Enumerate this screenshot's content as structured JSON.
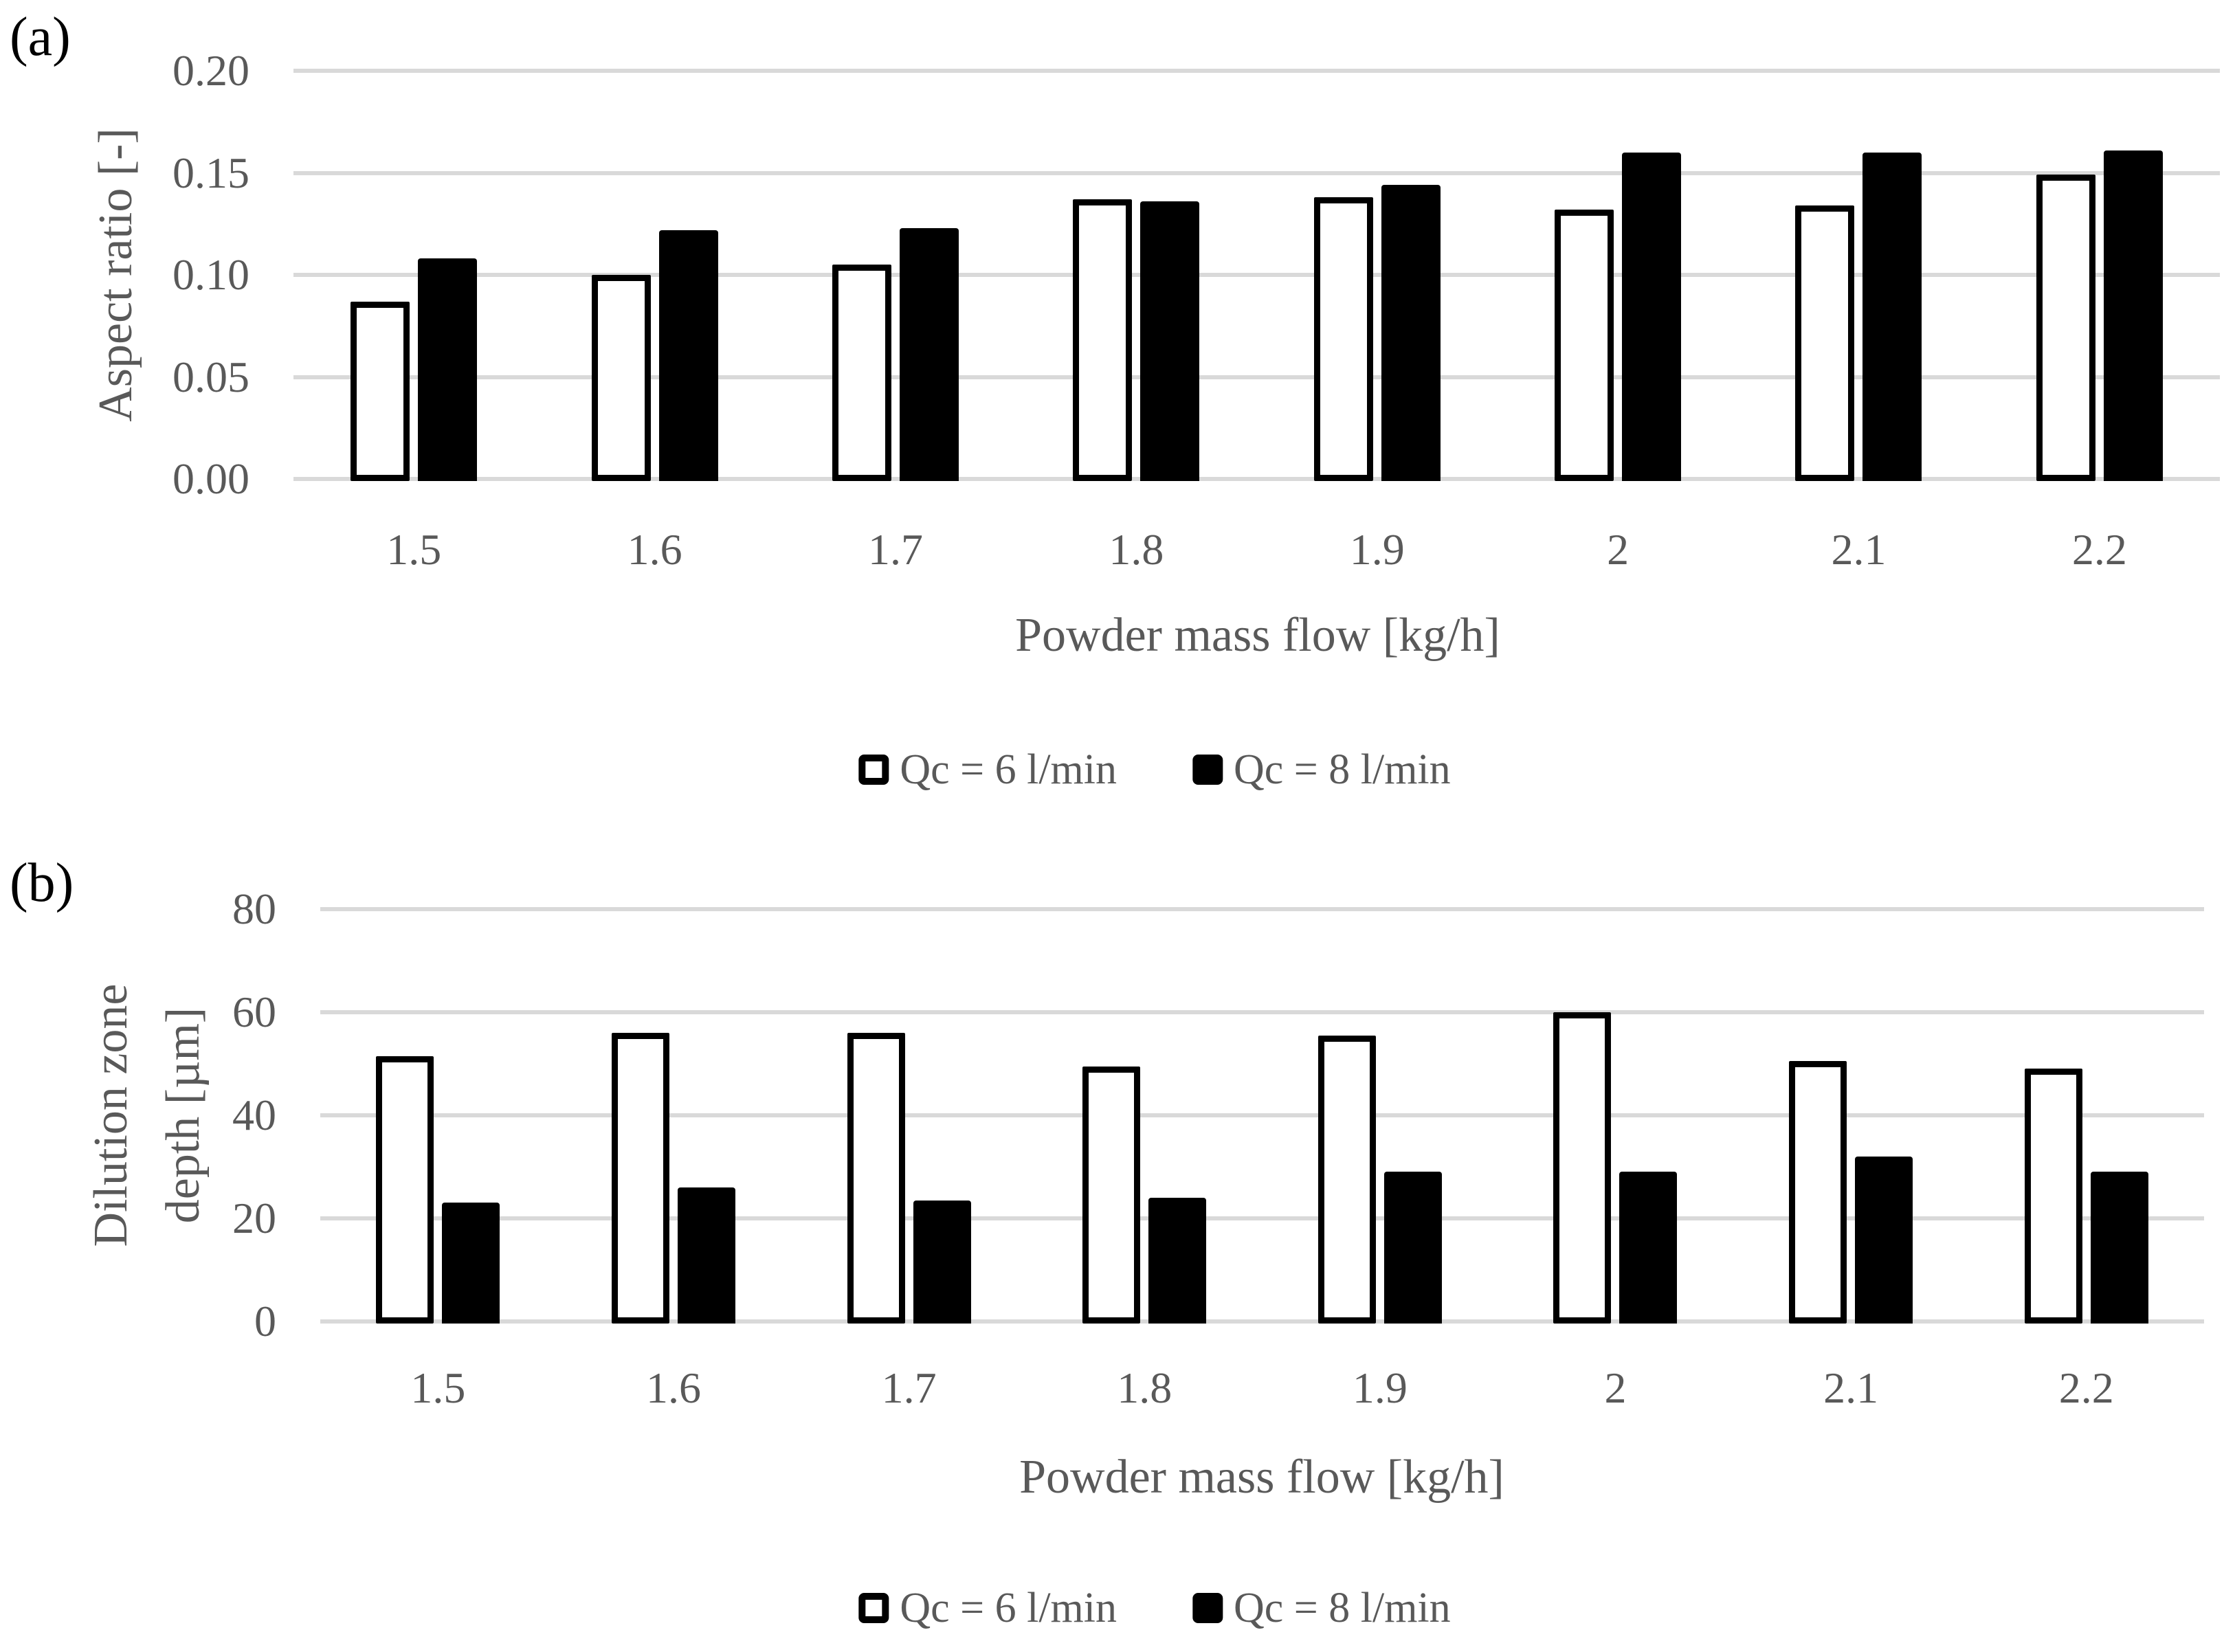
{
  "figure_type": "two-panel grouped bar chart",
  "colors": {
    "background": "#FFFFFF",
    "gridline": "#D9D9D9",
    "axis_text": "#595959",
    "bar_open_fill": "#FFFFFF",
    "bar_open_border": "#000000",
    "bar_filled": "#000000",
    "panel_label_color": "#000000"
  },
  "chart_data": [
    {
      "id": "a",
      "type": "bar",
      "panel_label": "(a)",
      "title": "",
      "categories": [
        "1.5",
        "1.6",
        "1.7",
        "1.8",
        "1.9",
        "2",
        "2.1",
        "2.2"
      ],
      "series": [
        {
          "name": "Qc = 6 l/min",
          "fill": "#FFFFFF",
          "style": "open",
          "values": [
            0.087,
            0.1,
            0.105,
            0.137,
            0.138,
            0.132,
            0.134,
            0.149
          ]
        },
        {
          "name": "Qc = 8 l/min",
          "fill": "#000000",
          "style": "filled",
          "values": [
            0.108,
            0.122,
            0.123,
            0.136,
            0.144,
            0.16,
            0.16,
            0.161
          ]
        }
      ],
      "xlabel": "Powder mass flow [kg/h]",
      "ylabel": "Aspect ratio [-]",
      "ylabel_lines": [
        "Aspect ratio [-]"
      ],
      "ylim": [
        0,
        0.2
      ],
      "ytick_labels": [
        "0.00",
        "0.05",
        "0.10",
        "0.15",
        "0.20"
      ],
      "grid": true,
      "legend_position": "bottom"
    },
    {
      "id": "b",
      "type": "bar",
      "panel_label": "(b)",
      "title": "",
      "categories": [
        "1.5",
        "1.6",
        "1.7",
        "1.8",
        "1.9",
        "2",
        "2.1",
        "2.2"
      ],
      "series": [
        {
          "name": "Qc = 6 l/min",
          "fill": "#FFFFFF",
          "style": "open",
          "values": [
            51.5,
            56,
            56,
            49.5,
            55.5,
            60,
            50.5,
            49
          ]
        },
        {
          "name": "Qc = 8 l/min",
          "fill": "#000000",
          "style": "filled",
          "values": [
            23,
            26,
            23.5,
            24,
            29,
            29,
            32,
            29
          ]
        }
      ],
      "xlabel": "Powder mass flow [kg/h]",
      "ylabel": "Dilution zone depth [µm]",
      "ylabel_lines": [
        "Dilution zone",
        "depth [µm]"
      ],
      "ylim": [
        0,
        80
      ],
      "ytick_labels": [
        "0",
        "20",
        "40",
        "60",
        "80"
      ],
      "grid": true,
      "legend_position": "bottom"
    }
  ]
}
